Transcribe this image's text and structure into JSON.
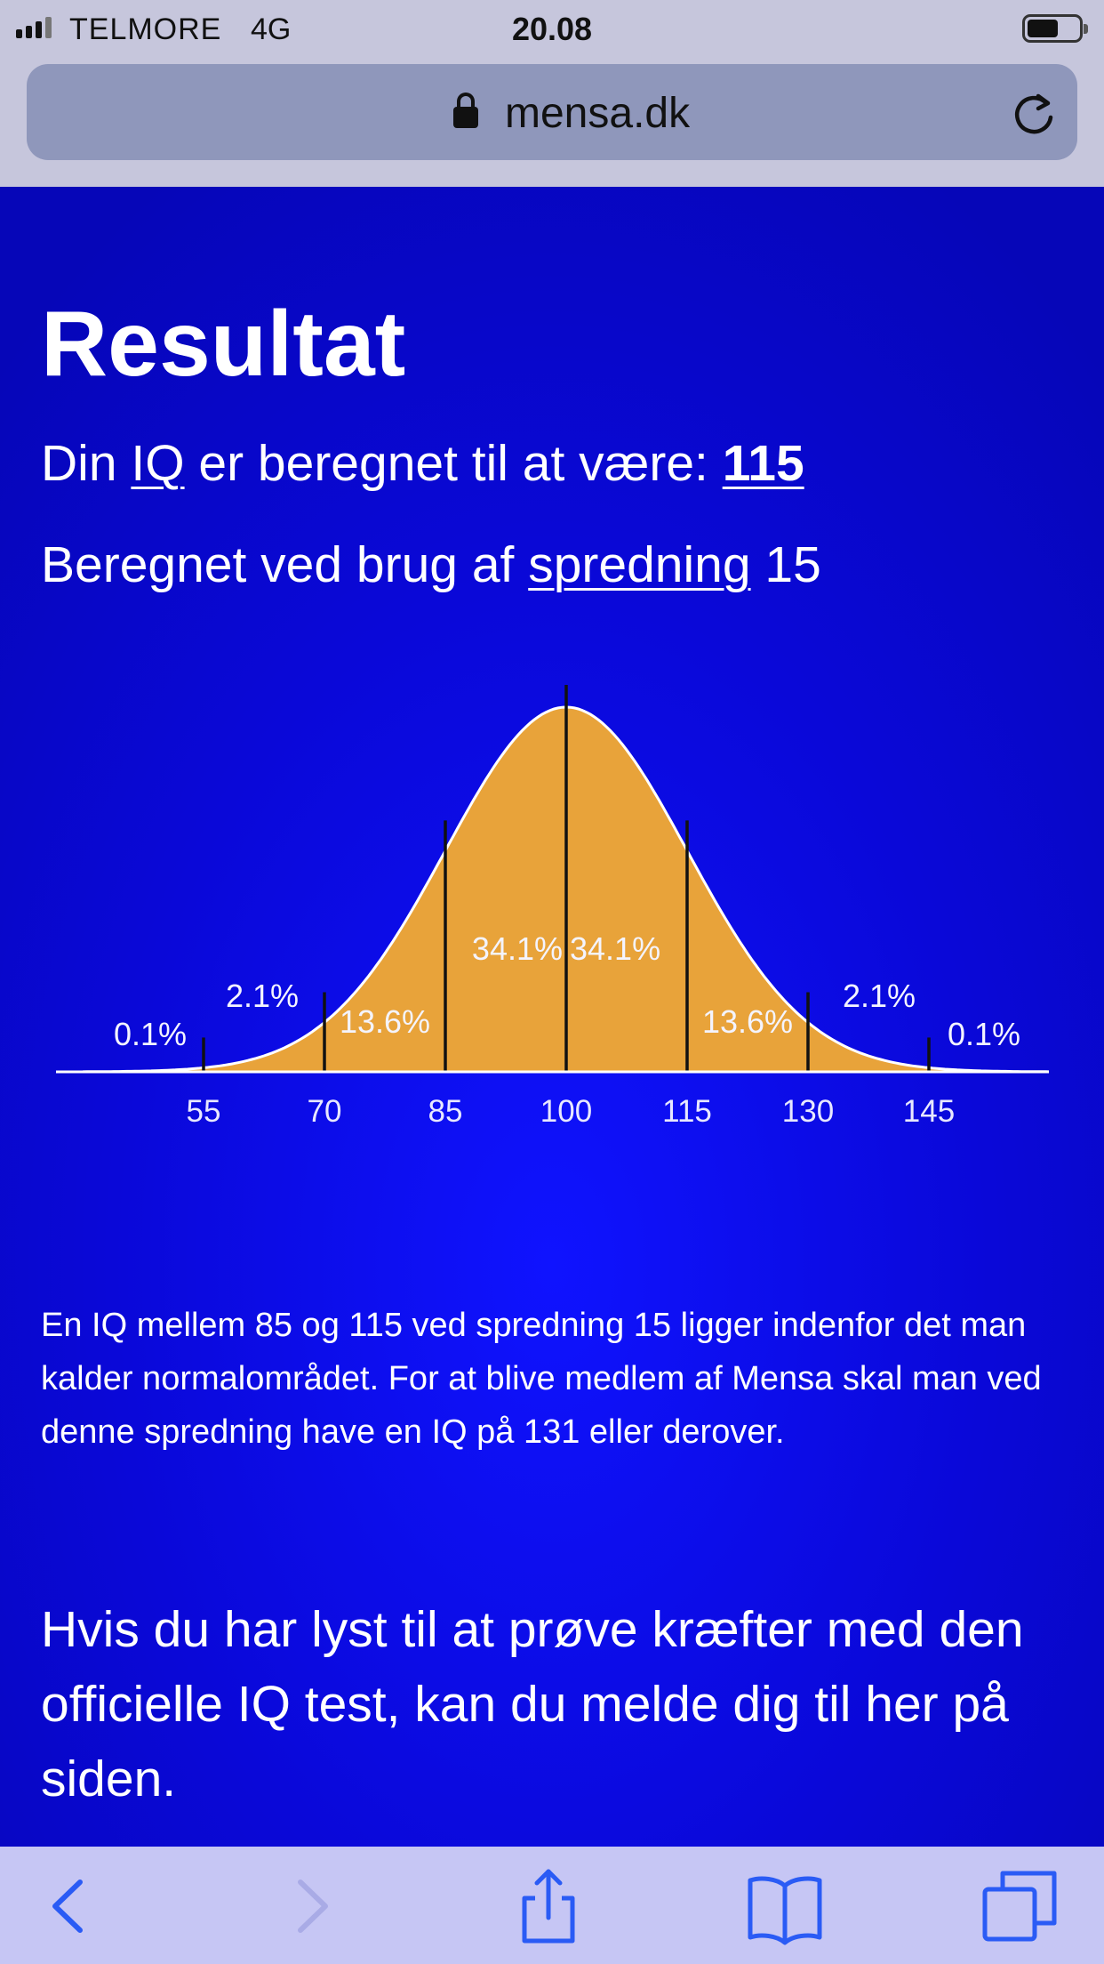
{
  "status": {
    "carrier": "TELMORE",
    "network": "4G",
    "time": "20.08"
  },
  "browser": {
    "domain": "mensa.dk"
  },
  "page": {
    "title": "Resultat",
    "iq_prefix": "Din ",
    "iq_link": "IQ",
    "iq_middle": " er beregnet til at være: ",
    "iq_value": "115",
    "spread_prefix": "Beregnet ved brug af ",
    "spread_link": "spredning",
    "spread_value": " 15",
    "description": "En IQ mellem 85 og 115 ved spredning 15 ligger indenfor det man kalder normalområdet. For at blive medlem af Mensa skal man ved denne spredning have en IQ på 131 eller derover.",
    "cta": "Hvis du har lyst til at prøve kræfter med den officielle IQ test, kan du melde dig til her på siden."
  },
  "chart_data": {
    "type": "area",
    "title": "",
    "xlabel": "",
    "ylabel": "",
    "mean": 100,
    "sd": 15,
    "xlim": [
      40,
      160
    ],
    "ticks": [
      "55",
      "70",
      "85",
      "100",
      "115",
      "130",
      "145"
    ],
    "tick_values": [
      55,
      70,
      85,
      100,
      115,
      130,
      145
    ],
    "segments": [
      {
        "label": "0.1%",
        "from": 40,
        "to": 55
      },
      {
        "label": "2.1%",
        "from": 55,
        "to": 70
      },
      {
        "label": "13.6%",
        "from": 70,
        "to": 85
      },
      {
        "label": "34.1%",
        "from": 85,
        "to": 100
      },
      {
        "label": "34.1%",
        "from": 100,
        "to": 115
      },
      {
        "label": "13.6%",
        "from": 115,
        "to": 130
      },
      {
        "label": "2.1%",
        "from": 130,
        "to": 145
      },
      {
        "label": "0.1%",
        "from": 145,
        "to": 160
      }
    ],
    "fill_color": "#e8a33a",
    "curve_color": "#ffffff",
    "divider_color": "#111111"
  },
  "toolbar": {
    "icons": [
      "back-icon",
      "forward-icon",
      "share-icon",
      "bookmarks-icon",
      "tabs-icon"
    ]
  }
}
